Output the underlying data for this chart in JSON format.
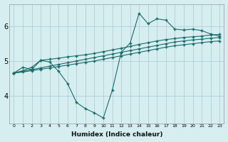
{
  "bg_color": "#d6eef0",
  "grid_color": "#b0cdd8",
  "line_color": "#1a6b6b",
  "xlabel": "Humidex (Indice chaleur)",
  "yticks": [
    4,
    5,
    6
  ],
  "xticks": [
    0,
    1,
    2,
    3,
    4,
    5,
    6,
    7,
    8,
    9,
    10,
    11,
    12,
    13,
    14,
    15,
    16,
    17,
    18,
    19,
    20,
    21,
    22,
    23
  ],
  "xlim": [
    -0.5,
    23.5
  ],
  "ylim": [
    3.2,
    6.65
  ],
  "series": [
    {
      "x": [
        0,
        1,
        2,
        3,
        4,
        5,
        6,
        7,
        8,
        9,
        10,
        11,
        12,
        13,
        14,
        15,
        16,
        17,
        18,
        19,
        20,
        21,
        22,
        23
      ],
      "y": [
        4.65,
        4.82,
        4.75,
        5.02,
        4.97,
        4.7,
        4.35,
        3.8,
        3.62,
        3.5,
        3.35,
        4.15,
        5.25,
        5.52,
        6.38,
        6.08,
        6.22,
        6.18,
        5.92,
        5.9,
        5.92,
        5.88,
        5.78,
        5.72
      ]
    },
    {
      "x": [
        0,
        1,
        2,
        3,
        4,
        5,
        6,
        7,
        8,
        9,
        10,
        11,
        12,
        13,
        14,
        15,
        16,
        17,
        18,
        19,
        20,
        21,
        22,
        23
      ],
      "y": [
        4.65,
        4.72,
        4.82,
        5.02,
        5.05,
        5.08,
        5.12,
        5.15,
        5.18,
        5.22,
        5.27,
        5.32,
        5.37,
        5.42,
        5.48,
        5.53,
        5.58,
        5.62,
        5.65,
        5.68,
        5.7,
        5.72,
        5.75,
        5.77
      ]
    },
    {
      "x": [
        0,
        1,
        2,
        3,
        4,
        5,
        6,
        7,
        8,
        9,
        10,
        11,
        12,
        13,
        14,
        15,
        16,
        17,
        18,
        19,
        20,
        21,
        22,
        23
      ],
      "y": [
        4.65,
        4.7,
        4.75,
        4.8,
        4.85,
        4.9,
        4.95,
        5.0,
        5.05,
        5.1,
        5.15,
        5.2,
        5.25,
        5.3,
        5.35,
        5.4,
        5.45,
        5.5,
        5.55,
        5.58,
        5.61,
        5.63,
        5.66,
        5.68
      ]
    },
    {
      "x": [
        0,
        1,
        2,
        3,
        4,
        5,
        6,
        7,
        8,
        9,
        10,
        11,
        12,
        13,
        14,
        15,
        16,
        17,
        18,
        19,
        20,
        21,
        22,
        23
      ],
      "y": [
        4.65,
        4.68,
        4.72,
        4.76,
        4.8,
        4.84,
        4.88,
        4.92,
        4.96,
        5.0,
        5.05,
        5.1,
        5.15,
        5.2,
        5.25,
        5.3,
        5.35,
        5.4,
        5.44,
        5.47,
        5.5,
        5.53,
        5.56,
        5.58
      ]
    }
  ]
}
